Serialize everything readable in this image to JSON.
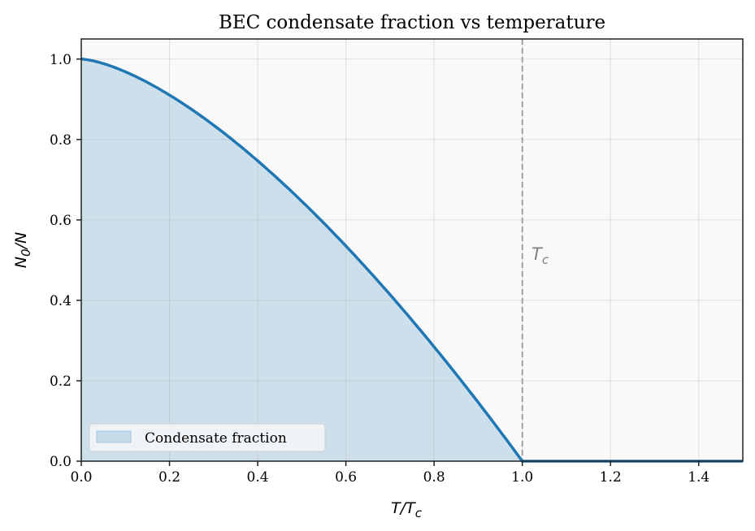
{
  "chart_data": {
    "type": "area",
    "title": "BEC condensate fraction vs temperature",
    "xlabel": "T/T_c",
    "ylabel": "N_0/N",
    "xlim": [
      0.0,
      1.5
    ],
    "ylim": [
      0.0,
      1.05
    ],
    "grid": true,
    "legend_position": "lower left",
    "x_ticks": [
      "0.0",
      "0.2",
      "0.4",
      "0.6",
      "0.8",
      "1.0",
      "1.2",
      "1.4"
    ],
    "y_ticks": [
      "0.0",
      "0.2",
      "0.4",
      "0.6",
      "0.8",
      "1.0"
    ],
    "series": [
      {
        "name": "Condensate fraction",
        "formula": "1 - (T/Tc)^1.5 for T<Tc, 0 otherwise",
        "x": [
          0.0,
          0.1,
          0.2,
          0.3,
          0.4,
          0.5,
          0.6,
          0.7,
          0.8,
          0.9,
          1.0,
          1.1,
          1.2,
          1.3,
          1.4,
          1.5
        ],
        "values": [
          1.0,
          0.968,
          0.911,
          0.836,
          0.747,
          0.646,
          0.535,
          0.414,
          0.284,
          0.146,
          0.0,
          0.0,
          0.0,
          0.0,
          0.0,
          0.0
        ],
        "color": "#1f77b4",
        "fill_color": "#cddfeb"
      }
    ],
    "annotations": [
      {
        "text": "T_c",
        "x": 1.02,
        "y": 0.5,
        "color": "#808080"
      }
    ],
    "reference_lines": [
      {
        "type": "vertical",
        "x": 1.0,
        "style": "dashed",
        "color": "#a0a0a0"
      }
    ]
  },
  "labels": {
    "title": "BEC condensate fraction vs temperature",
    "xlabel_main": "T/T",
    "xlabel_sub": "c",
    "ylabel_main": "N",
    "ylabel_sub": "0",
    "ylabel_tail": "/N",
    "legend": "Condensate fraction",
    "anno_main": "T",
    "anno_sub": "c"
  }
}
